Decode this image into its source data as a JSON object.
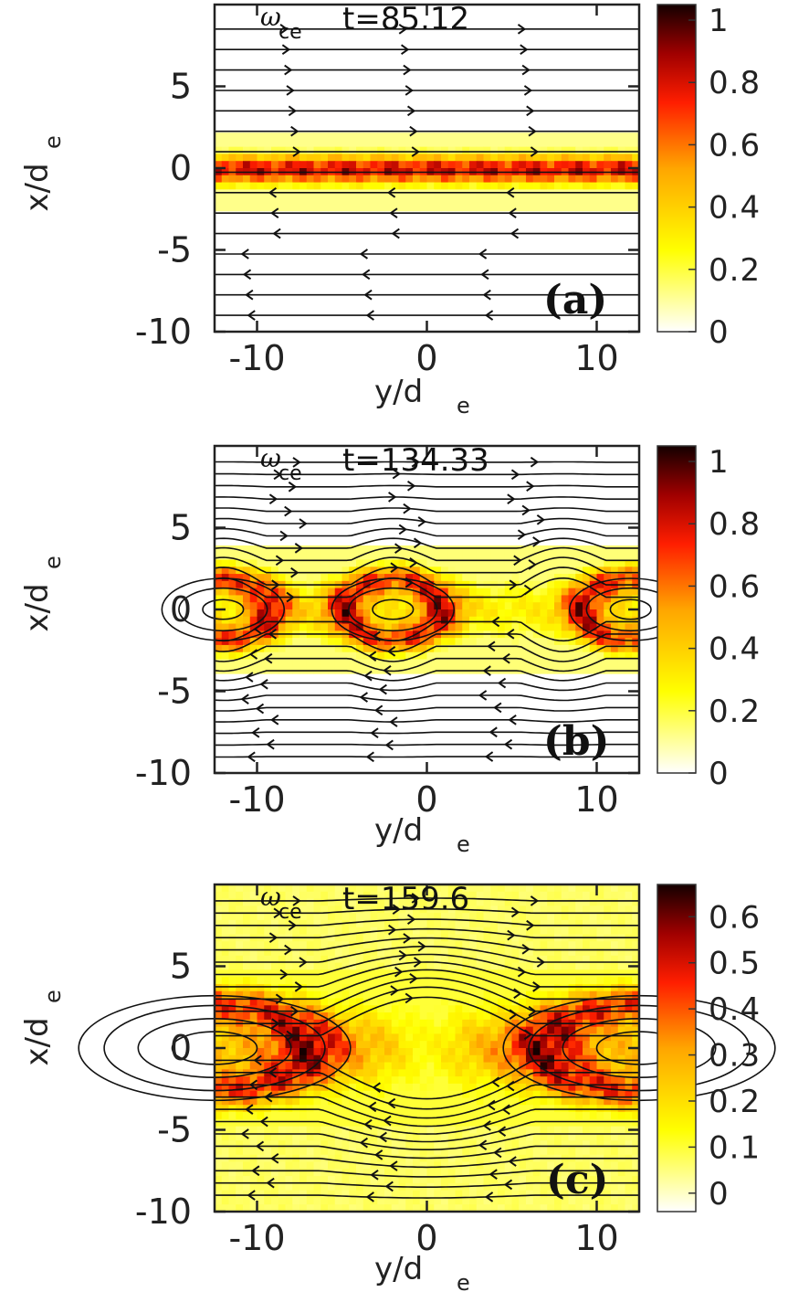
{
  "chart_data": [
    {
      "type": "heatmap",
      "panel_label": "(a)",
      "time_label": {
        "symbol": "ω",
        "subscript": "ce",
        "text": "t=85.12"
      },
      "xlabel": {
        "base": "y/d",
        "sub": "e"
      },
      "ylabel": {
        "base": "x/d",
        "sub": "e"
      },
      "xlim": [
        -12.5,
        12.5
      ],
      "ylim": [
        -10,
        10
      ],
      "xticks": [
        -10,
        0,
        10
      ],
      "yticks": [
        5,
        0,
        -5,
        -10
      ],
      "xtick_labels": [
        "-10",
        "0",
        "10"
      ],
      "ytick_labels": [
        "5",
        "0",
        "-5",
        "-10"
      ],
      "colorbar": {
        "range": [
          0,
          1.05
        ],
        "ticks": [
          1,
          0.8,
          0.6,
          0.4,
          0.2,
          0
        ],
        "tick_labels": [
          "1",
          "0.8",
          "0.6",
          "0.4",
          "0.2",
          "0"
        ]
      },
      "field": {
        "stage": "current-sheet",
        "sheet_half_width": 2.3,
        "sheet_peak": 0.95
      },
      "streamlines": "uniform-horizontal"
    },
    {
      "type": "heatmap",
      "panel_label": "(b)",
      "time_label": {
        "symbol": "ω",
        "subscript": "ce",
        "text": "t=134.33"
      },
      "xlabel": {
        "base": "y/d",
        "sub": "e"
      },
      "ylabel": {
        "base": "x/d",
        "sub": "e"
      },
      "xlim": [
        -12.5,
        12.5
      ],
      "ylim": [
        -10,
        10
      ],
      "xticks": [
        -10,
        0,
        10
      ],
      "yticks": [
        5,
        0,
        -5,
        -10
      ],
      "xtick_labels": [
        "-10",
        "0",
        "10"
      ],
      "ytick_labels": [
        "5",
        "0",
        "-5",
        "-10"
      ],
      "colorbar": {
        "range": [
          0,
          1.05
        ],
        "ticks": [
          1,
          0.8,
          0.6,
          0.4,
          0.2,
          0
        ],
        "tick_labels": [
          "1",
          "0.8",
          "0.6",
          "0.4",
          "0.2",
          "0"
        ]
      },
      "field": {
        "stage": "islands",
        "o_points_y": [
          -12,
          -2,
          12
        ],
        "x_points_y": [
          -6,
          3
        ],
        "sheet_half_width": 3.8,
        "sheet_peak": 0.75
      },
      "streamlines": "magnetic-islands"
    },
    {
      "type": "heatmap",
      "panel_label": "(c)",
      "time_label": {
        "symbol": "ω",
        "subscript": "ce",
        "text": "t=159.6"
      },
      "xlabel": {
        "base": "y/d",
        "sub": "e"
      },
      "ylabel": {
        "base": "x/d",
        "sub": "e"
      },
      "xlim": [
        -12.5,
        12.5
      ],
      "ylim": [
        -10,
        10
      ],
      "xticks": [
        -10,
        0,
        10
      ],
      "yticks": [
        5,
        0,
        -5,
        -10
      ],
      "xtick_labels": [
        "-10",
        "0",
        "10"
      ],
      "ytick_labels": [
        "5",
        "0",
        "-5",
        "-10"
      ],
      "colorbar": {
        "range": [
          -0.04,
          0.67
        ],
        "ticks": [
          0.6,
          0.5,
          0.4,
          0.3,
          0.2,
          0.1,
          0
        ],
        "tick_labels": [
          "0.6",
          "0.5",
          "0.4",
          "0.3",
          "0.2",
          "0.1",
          "0"
        ]
      },
      "field": {
        "stage": "merged-island",
        "o_points_y": [
          -12.5,
          12.5
        ],
        "x_points_y": [
          0
        ],
        "sheet_half_width": 5.0,
        "sheet_peak": 0.5,
        "background": 0.08
      },
      "streamlines": "large-island"
    }
  ]
}
